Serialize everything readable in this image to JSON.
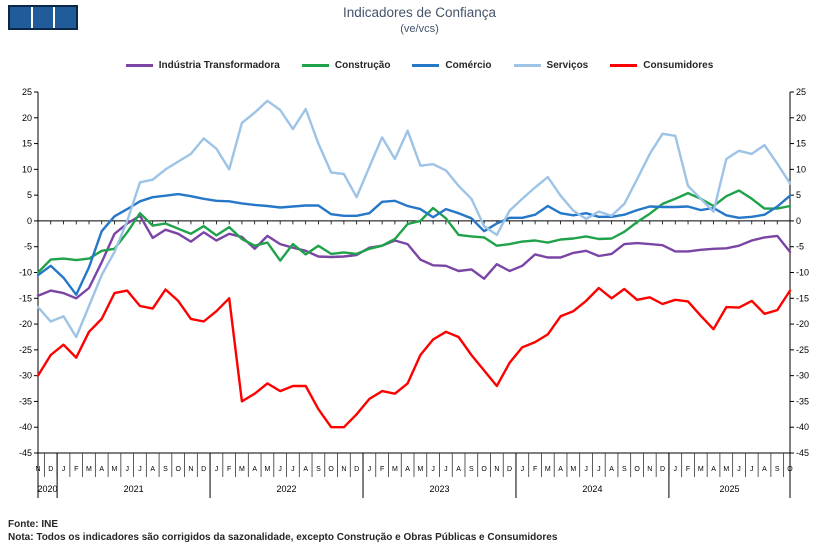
{
  "header": {
    "title": "Indicadores de Confiança",
    "subtitle": "(ve/vcs)"
  },
  "logo": {
    "icon": "ine-three-squares-logo",
    "square_color": "#1f5c99",
    "frame_color": "#0b2747"
  },
  "footer": {
    "source": "Fonte: INE",
    "note": "Nota: Todos os indicadores são corrigidos da sazonalidade, excepto Construção e Obras Públicas e Consumidores"
  },
  "chart_data": {
    "type": "line",
    "title": "Indicadores de Confiança",
    "subtitle": "(ve/vcs)",
    "ylabel": "",
    "xlabel": "",
    "ylim": [
      -45,
      25
    ],
    "ytick_step": 5,
    "grid": "zero-line-only",
    "legend_position": "top",
    "axis_color": "#000000",
    "x_axis": {
      "unit": "month",
      "years": [
        {
          "label": "2020",
          "months": [
            "N",
            "D"
          ]
        },
        {
          "label": "2021",
          "months": [
            "J",
            "F",
            "M",
            "A",
            "M",
            "J",
            "J",
            "A",
            "S",
            "O",
            "N",
            "D"
          ]
        },
        {
          "label": "2022",
          "months": [
            "J",
            "F",
            "M",
            "A",
            "M",
            "J",
            "J",
            "A",
            "S",
            "O",
            "N",
            "D"
          ]
        },
        {
          "label": "2023",
          "months": [
            "J",
            "F",
            "M",
            "A",
            "M",
            "J",
            "J",
            "A",
            "S",
            "O",
            "N",
            "D"
          ]
        },
        {
          "label": "2024",
          "months": [
            "J",
            "F",
            "M",
            "A",
            "M",
            "J",
            "J",
            "A",
            "S",
            "O",
            "N",
            "D"
          ]
        },
        {
          "label": "2025",
          "months": [
            "J",
            "F",
            "M",
            "A",
            "M",
            "J",
            "J",
            "A",
            "S",
            "O"
          ]
        }
      ]
    },
    "series": [
      {
        "name": "Indústria Transformadora",
        "color": "#7a45a5",
        "values": [
          -14.5,
          -13.5,
          -14,
          -15,
          -13,
          -8,
          -2.5,
          -0.5,
          1,
          -3.3,
          -1.7,
          -2.5,
          -4,
          -2.2,
          -3.8,
          -2.5,
          -3.1,
          -5.4,
          -2.9,
          -4.5,
          -5.2,
          -5.8,
          -6.9,
          -7,
          -6.9,
          -6.6,
          -5.2,
          -4.8,
          -3.8,
          -4.5,
          -7.5,
          -8.6,
          -8.7,
          -9.7,
          -9.4,
          -11.2,
          -8.4,
          -9.7,
          -8.7,
          -6.5,
          -7.1,
          -7.1,
          -6.2,
          -5.8,
          -6.8,
          -6.4,
          -4.5,
          -4.3,
          -4.5,
          -4.7,
          -5.9,
          -5.9,
          -5.6,
          -5.4,
          -5.3,
          -4.8,
          -3.8,
          -3.2,
          -2.9,
          -6
        ]
      },
      {
        "name": "Construção",
        "color": "#1fa24a",
        "values": [
          -10,
          -7.5,
          -7.3,
          -7.6,
          -7.3,
          -5.8,
          -5.4,
          -2.2,
          1.5,
          -0.9,
          -0.5,
          -1.5,
          -2.5,
          -1,
          -2.8,
          -1.2,
          -3.5,
          -4.8,
          -4.2,
          -7.7,
          -4.5,
          -6.5,
          -4.8,
          -6.4,
          -6.1,
          -6.4,
          -5.4,
          -4.8,
          -3.5,
          -0.6,
          0,
          2.5,
          0.5,
          -2.7,
          -3,
          -3.2,
          -4.8,
          -4.5,
          -4,
          -3.8,
          -4.2,
          -3.6,
          -3.4,
          -3,
          -3.5,
          -3.4,
          -2.1,
          -0.2,
          1.4,
          3.3,
          4.3,
          5.4,
          4.3,
          2.9,
          4.8,
          5.9,
          4.3,
          2.4,
          2.4,
          2.9
        ]
      },
      {
        "name": "Comércio",
        "color": "#2577c8",
        "values": [
          -10.5,
          -8.7,
          -11,
          -14.3,
          -9,
          -2,
          0.9,
          2.3,
          3.8,
          4.6,
          4.9,
          5.2,
          4.8,
          4.3,
          3.9,
          3.8,
          3.4,
          3.1,
          2.9,
          2.6,
          2.8,
          3,
          3,
          1.3,
          1,
          1,
          1.5,
          3.7,
          3.9,
          2.9,
          2.3,
          0.7,
          2.3,
          1.5,
          0.5,
          -2,
          -0.5,
          0.6,
          0.6,
          1.2,
          2.9,
          1.5,
          1.1,
          1.5,
          0.8,
          0.8,
          1.2,
          2.1,
          2.8,
          2.7,
          2.7,
          2.8,
          2.1,
          2.5,
          1.1,
          0.6,
          0.8,
          1.2,
          2.8,
          4.9
        ]
      },
      {
        "name": "Serviços",
        "color": "#9dc3e6",
        "values": [
          -16.7,
          -19.5,
          -18.5,
          -22.5,
          -16.5,
          -10.5,
          -6,
          0,
          7.5,
          8,
          10,
          11.5,
          13,
          16,
          14,
          10,
          19,
          21,
          23.3,
          21.5,
          17.8,
          21.7,
          15,
          9.4,
          9.1,
          4.6,
          10.5,
          16.2,
          12,
          17.5,
          10.7,
          11,
          9.8,
          6.8,
          4.3,
          -1,
          -2.7,
          2,
          4.3,
          6.5,
          8.5,
          4.9,
          2,
          0.4,
          1.8,
          1,
          3.3,
          8.1,
          13,
          16.9,
          16.5,
          6.8,
          4.3,
          1.8,
          12,
          13.6,
          13,
          14.7,
          11.1,
          7.3
        ]
      },
      {
        "name": "Consumidores",
        "color": "#ff0000",
        "values": [
          -30,
          -26,
          -24,
          -26.5,
          -21.5,
          -19,
          -14,
          -13.5,
          -16.5,
          -17,
          -13.3,
          -15.5,
          -19,
          -19.5,
          -17.5,
          -15,
          -35,
          -33.5,
          -31.5,
          -33,
          -32,
          -32,
          -36.5,
          -40,
          -40,
          -37.5,
          -34.5,
          -33,
          -33.5,
          -31.5,
          -26,
          -23,
          -21.5,
          -22.5,
          -26,
          -29,
          -32,
          -27.5,
          -24.5,
          -23.5,
          -22,
          -18.5,
          -17.5,
          -15.5,
          -13,
          -15,
          -13.2,
          -15.3,
          -14.8,
          -16.1,
          -15.3,
          -15.6,
          -18.4,
          -21,
          -16.7,
          -16.8,
          -15.5,
          -18,
          -17.3,
          -13.5
        ]
      }
    ]
  }
}
